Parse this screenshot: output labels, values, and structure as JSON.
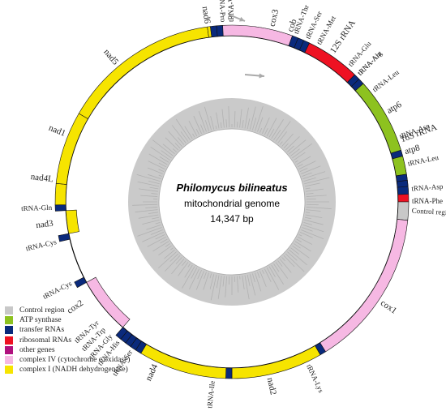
{
  "colors": {
    "control": "#c8c8c8",
    "atp": "#8dc21f",
    "trna": "#0a2a7c",
    "rrna": "#ee1122",
    "other": "#b0107e",
    "cox": "#f6b8e3",
    "nad": "#f6e400",
    "inner_ring": "#b8b8b8",
    "arrow": "#aaaaaa"
  },
  "center": {
    "title": "Philomycus bilineatus",
    "subtitle": "mitochondrial genome",
    "size": "14,347 bp"
  },
  "legend": [
    {
      "label": "Control region",
      "type": "control"
    },
    {
      "label": "ATP synthase",
      "type": "atp"
    },
    {
      "label": "transfer RNAs",
      "type": "trna"
    },
    {
      "label": "ribosomal RNAs",
      "type": "rrna"
    },
    {
      "label": "other genes",
      "type": "other"
    },
    {
      "label": "complex IV (cytochrome c oxidase)",
      "type": "cox"
    },
    {
      "label": "complex I (NADH dehydrogenase)",
      "type": "nad"
    }
  ],
  "features": [
    {
      "name": "cob",
      "type": "other",
      "strand": "outer",
      "start": 7.5,
      "end": 51,
      "label_angle": 19
    },
    {
      "name": "tRNA-Ala",
      "type": "trna",
      "strand": "outer",
      "start": 51,
      "end": 54,
      "label_angle": 45
    },
    {
      "name": "tRNA-Leu",
      "type": "trna",
      "strand": "outer",
      "start": 54,
      "end": 58,
      "label_angle": 52
    },
    {
      "name": "16S rRNA",
      "type": "rrna",
      "strand": "outer",
      "start": 58,
      "end": 90,
      "label_angle": 70
    },
    {
      "name": "Control region",
      "type": "control",
      "strand": "outer",
      "start": 90,
      "end": 96,
      "label_angle": 93
    },
    {
      "name": "cox1",
      "type": "cox",
      "strand": "outer",
      "start": 96,
      "end": 148,
      "label_angle": 124
    },
    {
      "name": "tRNA-Lys",
      "type": "trna",
      "strand": "outer",
      "start": 148,
      "end": 150,
      "label_angle": 155
    },
    {
      "name": "nad2",
      "type": "nad",
      "strand": "outer",
      "start": 150,
      "end": 180,
      "label_angle": 168
    },
    {
      "name": "tRNA-Ile",
      "type": "trna",
      "strand": "outer",
      "start": 180,
      "end": 182,
      "label_angle": 186
    },
    {
      "name": "nad4",
      "type": "nad",
      "strand": "outer",
      "start": 182,
      "end": 211,
      "label_angle": 205
    },
    {
      "name": "tRNA-Ser",
      "type": "trna",
      "strand": "outer",
      "start": 211,
      "end": 213,
      "label_angle": 214
    },
    {
      "name": "tRNA-His",
      "type": "trna",
      "strand": "outer",
      "start": 213,
      "end": 215,
      "label_angle": 219
    },
    {
      "name": "tRNA-Gly",
      "type": "trna",
      "strand": "outer",
      "start": 215,
      "end": 217,
      "label_angle": 222
    },
    {
      "name": "tRNA-Trp",
      "type": "trna",
      "strand": "outer",
      "start": 217,
      "end": 219,
      "label_angle": 225
    },
    {
      "name": "tRNA-Tyr",
      "type": "trna",
      "strand": "outer",
      "start": 219,
      "end": 221,
      "label_angle": 228
    },
    {
      "name": "cox2",
      "type": "cox",
      "strand": "inner",
      "start": 221,
      "end": 241,
      "label_angle": 236
    },
    {
      "name": "tRNA-Cys",
      "type": "trna",
      "strand": "outer",
      "start": 241,
      "end": 243,
      "label_angle": 243
    },
    {
      "name": "tRNA-Cys",
      "type": "trna",
      "strand": "outer",
      "start": 257,
      "end": 259,
      "label_angle": 257
    },
    {
      "name": "nad3",
      "type": "nad",
      "strand": "inner",
      "start": 259,
      "end": 267,
      "label_angle": 263
    },
    {
      "name": "tRNA-Gln",
      "type": "trna",
      "strand": "outer",
      "start": 267,
      "end": 269,
      "label_angle": 268
    },
    {
      "name": "nad4L",
      "type": "nad",
      "strand": "outer",
      "start": 269,
      "end": 276,
      "label_angle": 277
    },
    {
      "name": "nad1",
      "type": "nad",
      "strand": "outer",
      "start": 276,
      "end": 300,
      "label_angle": 292
    },
    {
      "name": "nad5",
      "type": "nad",
      "strand": "outer",
      "start": 300,
      "end": 352,
      "label_angle": 320
    },
    {
      "name": "nad6",
      "type": "nad",
      "strand": "outer",
      "start": 352,
      "end": 353,
      "label_angle": 352
    },
    {
      "name": "tRNA-Pro",
      "type": "trna",
      "strand": "outer",
      "start": 353,
      "end": 355,
      "label_angle": 357
    },
    {
      "name": "tRNA-Val",
      "type": "trna",
      "strand": "outer",
      "start": 355,
      "end": 357,
      "label_angle": 360
    },
    {
      "name": "cox3",
      "type": "cox",
      "strand": "outer",
      "start": 357,
      "end": 380,
      "label_angle": 373
    },
    {
      "name": "tRNA-Thr",
      "type": "trna",
      "strand": "outer",
      "start": 380,
      "end": 382,
      "label_angle": 381
    },
    {
      "name": "tRNA-Ser",
      "type": "trna",
      "strand": "outer",
      "start": 382,
      "end": 384,
      "label_angle": 385
    },
    {
      "name": "tRNA-Met",
      "type": "trna",
      "strand": "outer",
      "start": 384,
      "end": 386,
      "label_angle": 389
    },
    {
      "name": "12S rRNA",
      "type": "rrna",
      "strand": "outer",
      "start": 386,
      "end": 404,
      "label_angle": 394
    },
    {
      "name": "tRNA-Glu",
      "type": "trna",
      "strand": "outer",
      "start": 404,
      "end": 406,
      "label_angle": 401
    },
    {
      "name": "tRNA-Arg",
      "type": "trna",
      "strand": "outer",
      "start": 406,
      "end": 408,
      "label_angle": 405
    },
    {
      "name": "atp6",
      "type": "atp",
      "strand": "outer",
      "start": 408,
      "end": 433,
      "label_angle": 420
    },
    {
      "name": "tRNA-Asn",
      "type": "trna",
      "strand": "outer",
      "start": 433,
      "end": 435,
      "label_angle": 429
    },
    {
      "name": "atp8",
      "type": "atp",
      "strand": "outer",
      "start": 435,
      "end": 441,
      "label_angle": 434
    },
    {
      "name": "tRNA-Leu",
      "type": "trna",
      "strand": "outer",
      "start": 441,
      "end": 443,
      "label_angle": 438
    },
    {
      "name": "tRNA-Asp",
      "type": "trna",
      "strand": "outer",
      "start": 443,
      "end": 445,
      "label_angle": 446
    },
    {
      "name": "tRNA-Phe",
      "type": "trna",
      "strand": "outer",
      "start": 445,
      "end": 447.5,
      "label_angle": 450
    }
  ]
}
